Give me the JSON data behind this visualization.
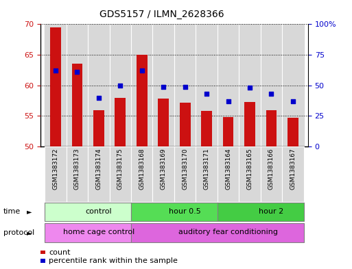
{
  "title": "GDS5157 / ILMN_2628366",
  "samples": [
    "GSM1383172",
    "GSM1383173",
    "GSM1383174",
    "GSM1383175",
    "GSM1383168",
    "GSM1383169",
    "GSM1383170",
    "GSM1383171",
    "GSM1383164",
    "GSM1383165",
    "GSM1383166",
    "GSM1383167"
  ],
  "counts": [
    69.5,
    63.5,
    56.0,
    58.0,
    65.0,
    57.8,
    57.2,
    55.8,
    54.8,
    57.3,
    56.0,
    54.7
  ],
  "percentiles_pct": [
    62,
    61,
    40,
    50,
    62,
    49,
    49,
    43,
    37,
    48,
    43,
    37
  ],
  "ylim_left": [
    50,
    70
  ],
  "ylim_right": [
    0,
    100
  ],
  "yticks_left": [
    50,
    55,
    60,
    65,
    70
  ],
  "yticks_right": [
    0,
    25,
    50,
    75,
    100
  ],
  "bar_color": "#cc1111",
  "dot_color": "#0000cc",
  "time_groups": [
    {
      "label": "control",
      "start": 0,
      "end": 4,
      "color": "#ccffcc"
    },
    {
      "label": "hour 0.5",
      "start": 4,
      "end": 8,
      "color": "#55dd55"
    },
    {
      "label": "hour 2",
      "start": 8,
      "end": 12,
      "color": "#44cc44"
    }
  ],
  "protocol_groups": [
    {
      "label": "home cage control",
      "start": 0,
      "end": 4,
      "color": "#ee88ee"
    },
    {
      "label": "auditory fear conditioning",
      "start": 4,
      "end": 12,
      "color": "#dd66dd"
    }
  ],
  "tick_label_color_left": "#cc1111",
  "tick_label_color_right": "#0000cc",
  "background_color": "#ffffff",
  "cell_bg_color": "#d8d8d8",
  "legend_count_color": "#cc1111",
  "legend_pct_color": "#0000cc"
}
